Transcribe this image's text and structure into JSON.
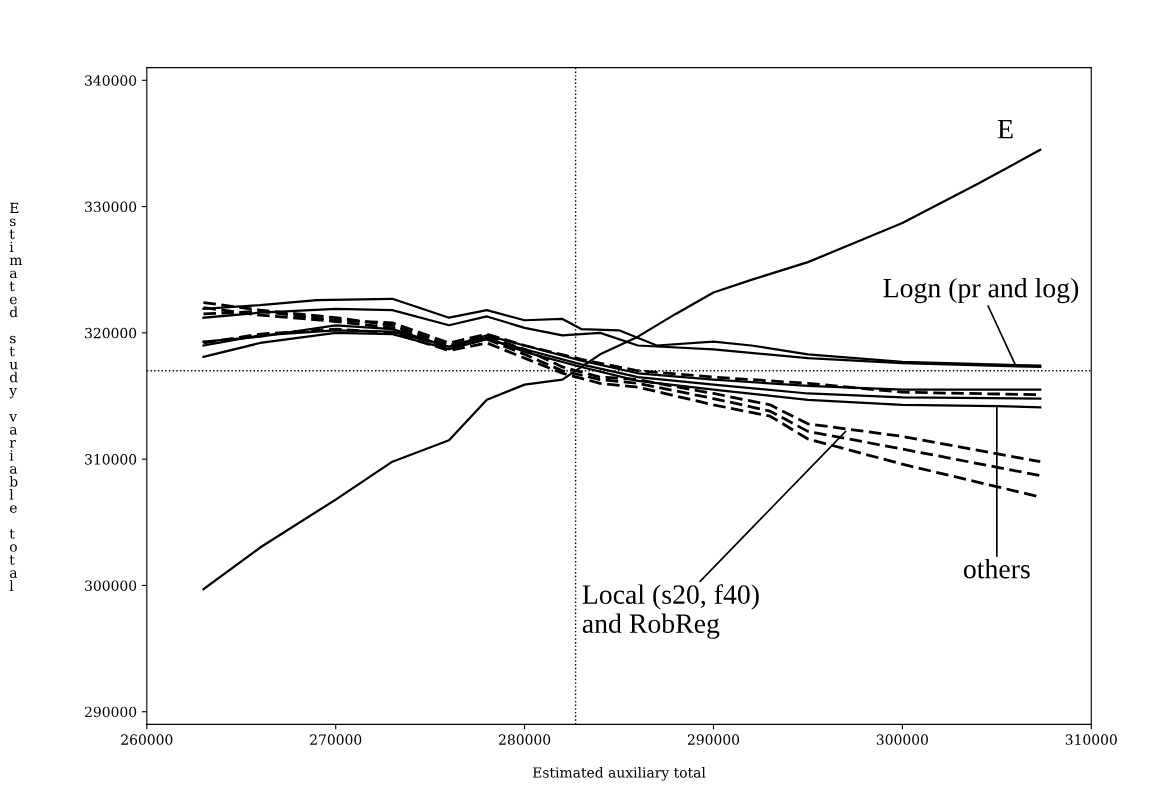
{
  "chart_data": {
    "type": "line",
    "xlabel": "Estimated auxiliary total",
    "ylabel": "Estimated study variable total",
    "xlim": [
      260000,
      310000
    ],
    "xticks": [
      260000,
      270000,
      280000,
      290000,
      300000,
      310000
    ],
    "ylim": [
      289000,
      341000
    ],
    "yticks": [
      290000,
      300000,
      310000,
      320000,
      330000,
      340000
    ],
    "grid": false,
    "marker": "none",
    "series": [
      {
        "color": "#000000",
        "line_style": "solid",
        "x": [
          263000,
          266000,
          270000,
          273000,
          276000,
          278000,
          280000,
          282000,
          284000,
          286000,
          288000,
          290000,
          292000,
          295000,
          300000,
          304000,
          307300
        ],
        "values": [
          299700,
          303000,
          306800,
          309800,
          311500,
          314700,
          315900,
          316300,
          318300,
          319700,
          321500,
          323200,
          324200,
          325600,
          328700,
          331800,
          334500
        ]
      },
      {
        "color": "#000000",
        "line_style": "solid",
        "x": [
          263000,
          266000,
          269000,
          273000,
          276000,
          278000,
          280000,
          282000,
          283000,
          285000,
          287000,
          290000,
          292000,
          295000,
          300000,
          307300
        ],
        "values": [
          321900,
          322200,
          322600,
          322700,
          321200,
          321800,
          321000,
          321100,
          320300,
          320200,
          319000,
          319300,
          319000,
          318300,
          317700,
          317400
        ]
      },
      {
        "color": "#000000",
        "line_style": "solid",
        "x": [
          263000,
          266000,
          270000,
          273000,
          276000,
          278000,
          280000,
          282000,
          284000,
          286000,
          290000,
          295000,
          300000,
          307300
        ],
        "values": [
          321200,
          321600,
          321900,
          321800,
          320600,
          321300,
          320400,
          319800,
          320000,
          319000,
          318700,
          318000,
          317600,
          317300
        ]
      },
      {
        "color": "#000000",
        "line_style": "dashed",
        "x": [
          263000,
          266000,
          270000,
          273000,
          276000,
          278000,
          280000,
          282000,
          284000,
          286000,
          290000,
          293000,
          295000,
          300000,
          307300
        ],
        "values": [
          322400,
          321800,
          321200,
          320600,
          319000,
          319700,
          318700,
          317300,
          316500,
          316300,
          315200,
          314300,
          312800,
          311800,
          309800
        ]
      },
      {
        "color": "#000000",
        "line_style": "dashed",
        "x": [
          263000,
          266000,
          270000,
          273000,
          276000,
          278000,
          280000,
          282000,
          284000,
          286000,
          290000,
          293000,
          295000,
          300000,
          307300
        ],
        "values": [
          322000,
          321400,
          320900,
          320400,
          318800,
          319500,
          318300,
          317000,
          316300,
          316000,
          314800,
          313800,
          312200,
          310800,
          308700
        ]
      },
      {
        "color": "#000000",
        "line_style": "dashed",
        "x": [
          263000,
          266000,
          270000,
          273000,
          276000,
          278000,
          280000,
          282000,
          284000,
          286000,
          290000,
          293000,
          295000,
          300000,
          307300
        ],
        "values": [
          319200,
          319900,
          320300,
          320000,
          318600,
          319200,
          318000,
          316800,
          316000,
          315700,
          314300,
          313400,
          311600,
          309600,
          307000
        ]
      },
      {
        "color": "#000000",
        "line_style": "dashed",
        "x": [
          263000,
          266000,
          270000,
          273000,
          276000,
          278000,
          280000,
          283000,
          286000,
          290000,
          295000,
          300000,
          307300
        ],
        "values": [
          321500,
          321700,
          321000,
          320800,
          319200,
          319900,
          319000,
          317900,
          317000,
          316500,
          316000,
          315300,
          315100
        ]
      },
      {
        "color": "#000000",
        "line_style": "solid",
        "x": [
          263000,
          266000,
          270000,
          273000,
          276000,
          278000,
          280000,
          283000,
          286000,
          290000,
          295000,
          300000,
          307300
        ],
        "values": [
          319000,
          319800,
          320200,
          320100,
          318900,
          319800,
          319000,
          317800,
          316800,
          316300,
          315800,
          315500,
          315500
        ]
      },
      {
        "color": "#000000",
        "line_style": "solid",
        "x": [
          263000,
          266000,
          270000,
          273000,
          276000,
          278000,
          280000,
          283000,
          286000,
          290000,
          295000,
          300000,
          307300
        ],
        "values": [
          318100,
          319200,
          320000,
          319900,
          318700,
          319500,
          318700,
          317500,
          316500,
          315900,
          315200,
          314900,
          314800
        ]
      },
      {
        "color": "#000000",
        "line_style": "solid",
        "x": [
          263000,
          266000,
          270000,
          273000,
          276000,
          278000,
          280000,
          283000,
          286000,
          290000,
          295000,
          300000,
          305000,
          307300
        ],
        "values": [
          319300,
          319700,
          320600,
          320300,
          318900,
          319600,
          318500,
          317300,
          316200,
          315500,
          314700,
          314300,
          314200,
          314100
        ]
      }
    ],
    "ref_lines": [
      {
        "axis": "x",
        "value": 282700,
        "line_style": "dotted",
        "color": "#000000"
      },
      {
        "axis": "y",
        "value": 317000,
        "line_style": "dotted",
        "color": "#000000"
      }
    ],
    "annotations": [
      {
        "text": "E",
        "x": 307300,
        "y": 334500
      },
      {
        "text": "Logn (pr and log)",
        "x": 306000,
        "y": 317400
      },
      {
        "text": "Local (s20, f40)\nand RobReg",
        "x": 297000,
        "y": 312200
      },
      {
        "text": "others",
        "x": 305000,
        "y": 314200
      }
    ]
  }
}
